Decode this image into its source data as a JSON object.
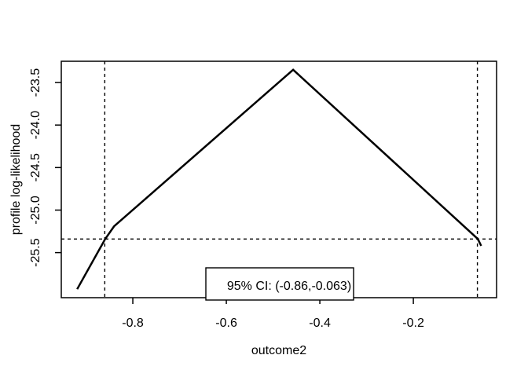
{
  "figure": {
    "background": "#ffffff",
    "foreground": "#000000"
  },
  "chart_data": {
    "type": "line",
    "title": "",
    "xlabel": "outcome2",
    "ylabel": "profile log-likelihood",
    "xlim": [
      -0.953,
      -0.022
    ],
    "ylim": [
      -26.03,
      -23.25
    ],
    "grid": false,
    "x_ticks": {
      "values": [
        -0.8,
        -0.6,
        -0.4,
        -0.2
      ],
      "labels": [
        "-0.8",
        "-0.6",
        "-0.4",
        "-0.2"
      ]
    },
    "y_ticks": {
      "values": [
        -23.5,
        -24.0,
        -24.5,
        -25.0,
        -25.5
      ],
      "labels": [
        "-23.5",
        "-24.0",
        "-24.5",
        "-25.0",
        "-25.5"
      ]
    },
    "series": [
      {
        "name": "profile log-likelihood",
        "color": "#000000",
        "style": "solid",
        "points": [
          [
            -0.919,
            -25.93
          ],
          [
            -0.859,
            -25.34
          ],
          [
            -0.84,
            -25.19
          ],
          [
            -0.457,
            -23.35
          ],
          [
            -0.062,
            -25.34
          ],
          [
            -0.055,
            -25.42
          ]
        ]
      }
    ],
    "reference_lines": {
      "style": "dashed",
      "color": "#000000",
      "vertical_x": [
        -0.86,
        -0.063
      ],
      "horizontal_y": [
        -25.34
      ]
    },
    "annotations": {
      "ci_label": "95% CI: (-0.86,-0.063)",
      "ci_lower": -0.86,
      "ci_upper": -0.063,
      "loglik_cutoff": -25.34,
      "peak_x": -0.457,
      "peak_loglik": -23.35
    },
    "legend_position": "bottom"
  }
}
